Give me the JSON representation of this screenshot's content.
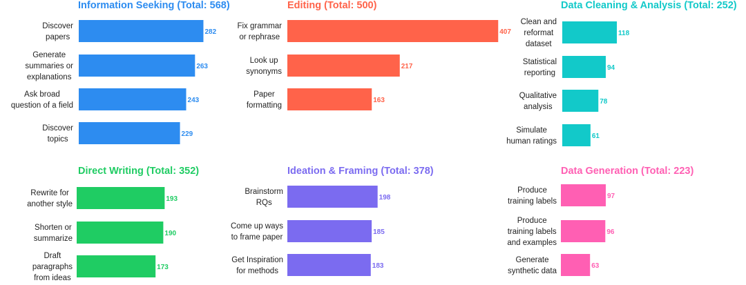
{
  "chart_data": [
    {
      "type": "bar",
      "title": "Information Seeking (Total: 568)",
      "color": "#2d8cf0",
      "categories": [
        [
          "Discover",
          "papers"
        ],
        [
          "Generate",
          "summaries or",
          "explanations"
        ],
        [
          "Ask broad",
          "question of a field"
        ],
        [
          "Discover",
          "topics"
        ]
      ],
      "values": [
        282,
        263,
        243,
        229
      ]
    },
    {
      "type": "bar",
      "title": "Editing (Total: 500)",
      "color": "#ff634a",
      "categories": [
        [
          "Fix grammar",
          "or rephrase"
        ],
        [
          "Look up",
          "synonyms"
        ],
        [
          "Paper",
          "formatting"
        ]
      ],
      "values": [
        407,
        217,
        163
      ]
    },
    {
      "type": "bar",
      "title": "Data Cleaning & Analysis (Total: 252)",
      "color": "#12c9c9",
      "categories": [
        [
          "Clean and",
          "reformat",
          "dataset"
        ],
        [
          "Statistical",
          "reporting"
        ],
        [
          "Qualitative",
          "analysis"
        ],
        [
          "Simulate",
          "human ratings"
        ]
      ],
      "values": [
        118,
        94,
        78,
        61
      ]
    },
    {
      "type": "bar",
      "title": "Direct Writing (Total: 352)",
      "color": "#1fcc63",
      "categories": [
        [
          "Rewrite for",
          "another style"
        ],
        [
          "Shorten or",
          "summarize"
        ],
        [
          "Draft",
          "paragraphs",
          "from ideas"
        ]
      ],
      "values": [
        193,
        190,
        173
      ]
    },
    {
      "type": "bar",
      "title": "Ideation & Framing (Total: 378)",
      "color": "#7b6bf0",
      "categories": [
        [
          "Brainstorm",
          "RQs"
        ],
        [
          "Come up  ways",
          "to frame paper"
        ],
        [
          "Get Inspiration",
          "for methods"
        ]
      ],
      "values": [
        198,
        185,
        183
      ]
    },
    {
      "type": "bar",
      "title": "Data Generation (Total: 223)",
      "color": "#ff5fb3",
      "categories": [
        [
          "Produce",
          "training labels"
        ],
        [
          "Produce",
          "training labels",
          "and examples"
        ],
        [
          "Generate",
          "synthetic data"
        ]
      ],
      "values": [
        97,
        96,
        63
      ]
    }
  ]
}
